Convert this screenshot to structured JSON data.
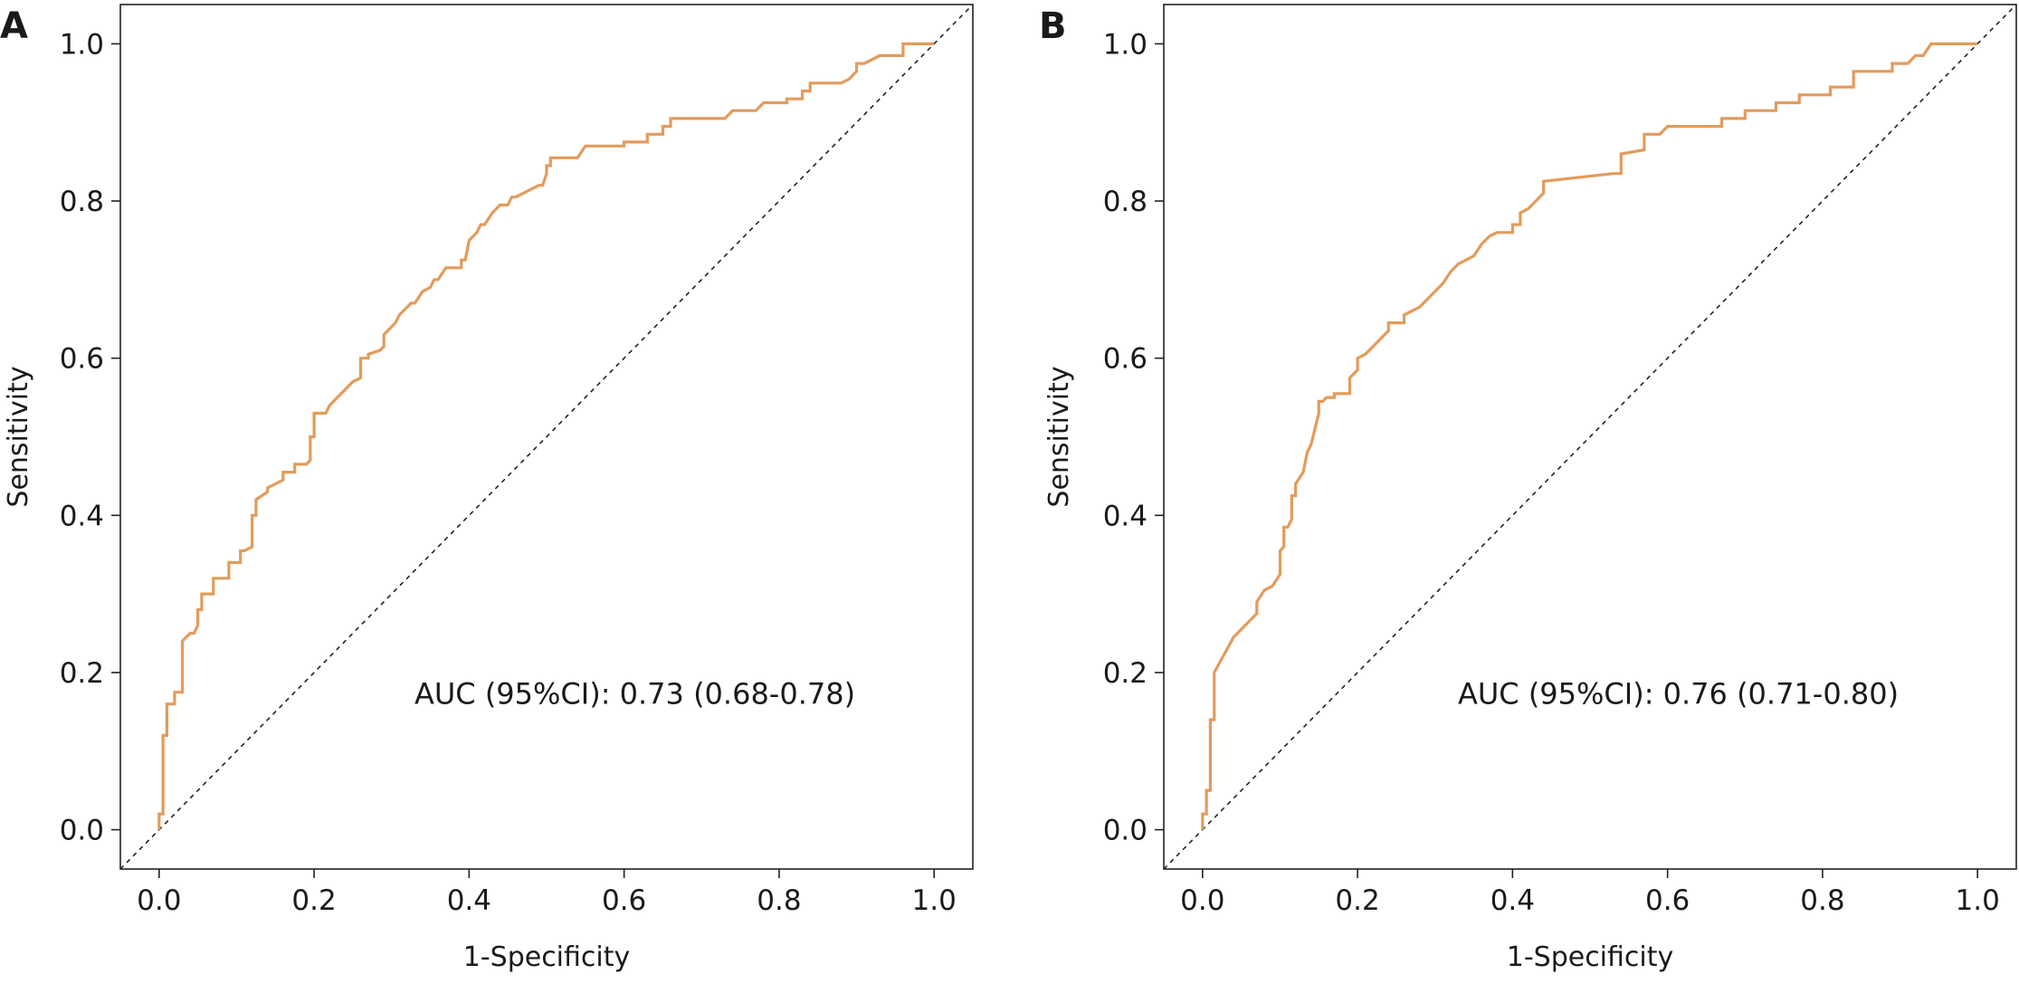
{
  "chart_data": [
    {
      "panel": "A",
      "type": "line",
      "xlabel": "1-Specificity",
      "ylabel": "Sensitivity",
      "xlim": [
        -0.05,
        1.05
      ],
      "ylim": [
        -0.05,
        1.05
      ],
      "xticks": [
        "0.0",
        "0.2",
        "0.4",
        "0.6",
        "0.8",
        "1.0"
      ],
      "yticks": [
        "0.0",
        "0.2",
        "0.4",
        "0.6",
        "0.8",
        "1.0"
      ],
      "grid": false,
      "line_color": "#E39B5B",
      "reference_line": "diagonal dashed",
      "annotation": "AUC (95%CI): 0.73 (0.68-0.78)",
      "series": [
        {
          "x": [
            0.0,
            0.0,
            0.005,
            0.005,
            0.01,
            0.01,
            0.02,
            0.02,
            0.03,
            0.03,
            0.04,
            0.045,
            0.05,
            0.05,
            0.055,
            0.055,
            0.07,
            0.07,
            0.09,
            0.09,
            0.105,
            0.105,
            0.11,
            0.12,
            0.12,
            0.125,
            0.125,
            0.14,
            0.14,
            0.16,
            0.16,
            0.175,
            0.175,
            0.19,
            0.195,
            0.195,
            0.2,
            0.2,
            0.215,
            0.22,
            0.225,
            0.24,
            0.24,
            0.25,
            0.25,
            0.26,
            0.26,
            0.27,
            0.27,
            0.285,
            0.29,
            0.29,
            0.3,
            0.305,
            0.31,
            0.32,
            0.325,
            0.33,
            0.34,
            0.35,
            0.355,
            0.36,
            0.37,
            0.39,
            0.39,
            0.395,
            0.4,
            0.41,
            0.415,
            0.42,
            0.43,
            0.44,
            0.45,
            0.455,
            0.46,
            0.47,
            0.49,
            0.495,
            0.5,
            0.5,
            0.505,
            0.505,
            0.53,
            0.54,
            0.55,
            0.6,
            0.6,
            0.63,
            0.63,
            0.65,
            0.65,
            0.66,
            0.66,
            0.73,
            0.74,
            0.77,
            0.78,
            0.81,
            0.81,
            0.83,
            0.83,
            0.84,
            0.84,
            0.88,
            0.89,
            0.9,
            0.9,
            0.91,
            0.93,
            0.93,
            0.96,
            0.96,
            1.0
          ],
          "y": [
            0.0,
            0.02,
            0.02,
            0.12,
            0.12,
            0.16,
            0.16,
            0.175,
            0.175,
            0.24,
            0.25,
            0.25,
            0.26,
            0.28,
            0.28,
            0.3,
            0.3,
            0.32,
            0.32,
            0.34,
            0.34,
            0.355,
            0.355,
            0.36,
            0.4,
            0.4,
            0.42,
            0.43,
            0.435,
            0.445,
            0.455,
            0.455,
            0.465,
            0.465,
            0.47,
            0.5,
            0.5,
            0.53,
            0.53,
            0.54,
            0.545,
            0.56,
            0.56,
            0.57,
            0.57,
            0.575,
            0.6,
            0.6,
            0.605,
            0.61,
            0.615,
            0.63,
            0.64,
            0.645,
            0.655,
            0.665,
            0.67,
            0.67,
            0.685,
            0.69,
            0.7,
            0.7,
            0.715,
            0.715,
            0.725,
            0.725,
            0.75,
            0.76,
            0.77,
            0.77,
            0.785,
            0.795,
            0.795,
            0.805,
            0.805,
            0.81,
            0.82,
            0.82,
            0.835,
            0.845,
            0.845,
            0.855,
            0.855,
            0.855,
            0.87,
            0.87,
            0.875,
            0.875,
            0.885,
            0.885,
            0.895,
            0.895,
            0.905,
            0.905,
            0.915,
            0.915,
            0.925,
            0.925,
            0.93,
            0.93,
            0.94,
            0.94,
            0.95,
            0.95,
            0.955,
            0.965,
            0.975,
            0.975,
            0.985,
            0.985,
            0.985,
            1.0,
            1.0
          ]
        }
      ]
    },
    {
      "panel": "B",
      "type": "line",
      "xlabel": "1-Specificity",
      "ylabel": "Sensitivity",
      "xlim": [
        -0.05,
        1.05
      ],
      "ylim": [
        -0.05,
        1.05
      ],
      "xticks": [
        "0.0",
        "0.2",
        "0.4",
        "0.6",
        "0.8",
        "1.0"
      ],
      "yticks": [
        "0.0",
        "0.2",
        "0.4",
        "0.6",
        "0.8",
        "1.0"
      ],
      "grid": false,
      "line_color": "#E39B5B",
      "reference_line": "diagonal dashed",
      "annotation": "AUC (95%CI): 0.76 (0.71-0.80)",
      "series": [
        {
          "x": [
            0.0,
            0.0,
            0.005,
            0.005,
            0.01,
            0.01,
            0.015,
            0.015,
            0.04,
            0.04,
            0.06,
            0.06,
            0.07,
            0.07,
            0.08,
            0.09,
            0.1,
            0.1,
            0.105,
            0.105,
            0.11,
            0.115,
            0.115,
            0.12,
            0.12,
            0.13,
            0.135,
            0.14,
            0.145,
            0.15,
            0.15,
            0.155,
            0.16,
            0.17,
            0.17,
            0.19,
            0.19,
            0.2,
            0.2,
            0.21,
            0.22,
            0.23,
            0.24,
            0.24,
            0.26,
            0.26,
            0.28,
            0.29,
            0.3,
            0.31,
            0.32,
            0.33,
            0.34,
            0.35,
            0.36,
            0.37,
            0.38,
            0.4,
            0.4,
            0.41,
            0.41,
            0.42,
            0.44,
            0.44,
            0.53,
            0.54,
            0.54,
            0.57,
            0.57,
            0.59,
            0.6,
            0.67,
            0.67,
            0.7,
            0.7,
            0.74,
            0.74,
            0.77,
            0.77,
            0.81,
            0.81,
            0.84,
            0.84,
            0.89,
            0.89,
            0.91,
            0.92,
            0.93,
            0.94,
            1.0
          ],
          "y": [
            0.0,
            0.02,
            0.02,
            0.05,
            0.05,
            0.14,
            0.14,
            0.2,
            0.245,
            0.245,
            0.265,
            0.265,
            0.275,
            0.29,
            0.305,
            0.31,
            0.325,
            0.355,
            0.36,
            0.385,
            0.385,
            0.395,
            0.425,
            0.425,
            0.44,
            0.455,
            0.48,
            0.49,
            0.51,
            0.53,
            0.545,
            0.545,
            0.55,
            0.55,
            0.555,
            0.555,
            0.575,
            0.585,
            0.6,
            0.605,
            0.615,
            0.625,
            0.635,
            0.645,
            0.645,
            0.655,
            0.665,
            0.675,
            0.685,
            0.695,
            0.71,
            0.72,
            0.725,
            0.73,
            0.745,
            0.755,
            0.76,
            0.76,
            0.77,
            0.77,
            0.785,
            0.79,
            0.81,
            0.825,
            0.835,
            0.835,
            0.86,
            0.865,
            0.885,
            0.885,
            0.895,
            0.895,
            0.905,
            0.905,
            0.915,
            0.915,
            0.925,
            0.925,
            0.935,
            0.935,
            0.945,
            0.945,
            0.965,
            0.965,
            0.975,
            0.975,
            0.985,
            0.985,
            1.0,
            1.0
          ]
        }
      ]
    }
  ]
}
